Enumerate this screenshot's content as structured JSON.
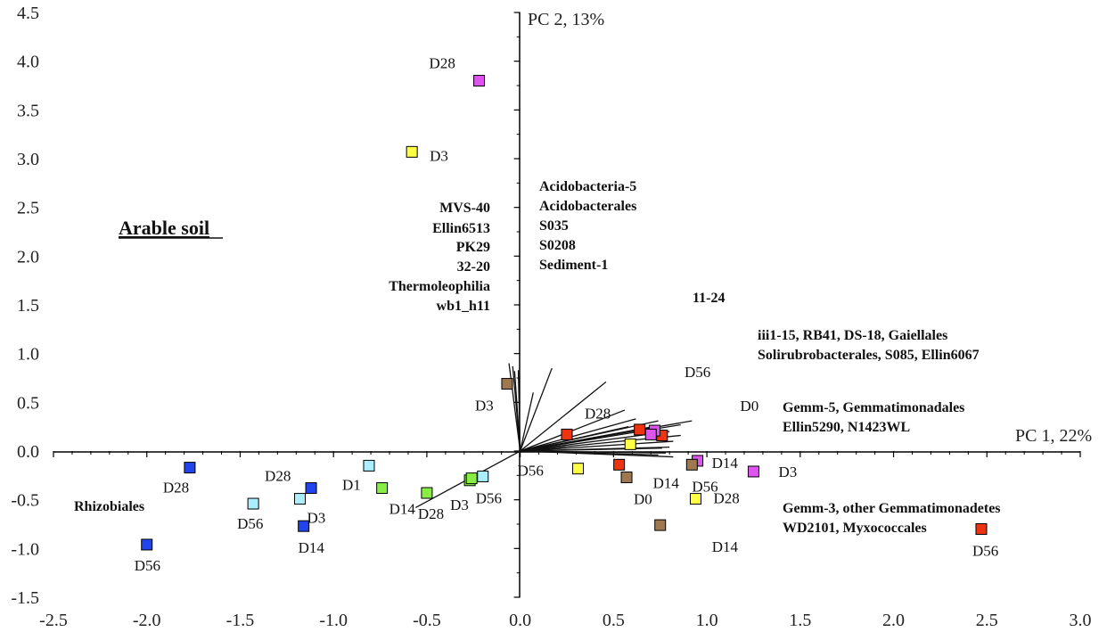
{
  "chart_data": {
    "type": "scatter",
    "title": "",
    "x_axis_title": "PC 1, 22%",
    "y_axis_title": "PC 2, 13%",
    "xlim": [
      -2.5,
      3.0
    ],
    "ylim": [
      -1.5,
      4.5
    ],
    "x_ticks": [
      "-2.5",
      "-2.0",
      "-1.5",
      "-1.0",
      "-0.5",
      "0.0",
      "0.5",
      "1.0",
      "1.5",
      "2.0",
      "2.5",
      "3.0"
    ],
    "y_ticks": [
      "4.5",
      "4.0",
      "3.5",
      "3.0",
      "2.5",
      "2.0",
      "1.5",
      "1.0",
      "0.5",
      "0.0",
      "-0.5",
      "-1.0",
      "-1.5"
    ],
    "grid": false,
    "colors": {
      "magenta": "#dd55ee",
      "yellow": "#ffff44",
      "brown": "#a07850",
      "red": "#ee3311",
      "blue": "#2244ee",
      "cyan": "#aaeeff",
      "green": "#88ee44"
    },
    "points": [
      {
        "x": -0.22,
        "y": 3.8,
        "color": "magenta",
        "label": "D28"
      },
      {
        "x": -0.58,
        "y": 3.07,
        "color": "yellow",
        "label": "D3"
      },
      {
        "x": -0.07,
        "y": 0.69,
        "color": "brown",
        "label": "D3"
      },
      {
        "x": 0.25,
        "y": 0.17,
        "color": "red",
        "label": "D28"
      },
      {
        "x": 0.64,
        "y": 0.22,
        "color": "red",
        "label": ""
      },
      {
        "x": 0.76,
        "y": 0.16,
        "color": "red",
        "label": ""
      },
      {
        "x": 0.72,
        "y": 0.21,
        "color": "magenta",
        "label": "D0"
      },
      {
        "x": 0.7,
        "y": 0.17,
        "color": "magenta",
        "label": ""
      },
      {
        "x": 0.59,
        "y": 0.07,
        "color": "yellow",
        "label": ""
      },
      {
        "x": 0.95,
        "y": -0.1,
        "color": "magenta",
        "label": "D14"
      },
      {
        "x": 0.92,
        "y": -0.14,
        "color": "brown",
        "label": "D56"
      },
      {
        "x": 1.25,
        "y": -0.21,
        "color": "magenta",
        "label": "D3"
      },
      {
        "x": 0.31,
        "y": -0.18,
        "color": "yellow",
        "label": "D56"
      },
      {
        "x": 0.53,
        "y": -0.14,
        "color": "red",
        "label": "D14"
      },
      {
        "x": 0.57,
        "y": -0.27,
        "color": "brown",
        "label": "D0"
      },
      {
        "x": 0.94,
        "y": -0.49,
        "color": "yellow",
        "label": "D28"
      },
      {
        "x": 0.75,
        "y": -0.76,
        "color": "brown",
        "label": "D14"
      },
      {
        "x": 2.47,
        "y": -0.8,
        "color": "red",
        "label": "D56"
      },
      {
        "x": -0.2,
        "y": -0.26,
        "color": "cyan",
        "label": "D56"
      },
      {
        "x": -0.27,
        "y": -0.3,
        "color": "green",
        "label": "D3"
      },
      {
        "x": -0.26,
        "y": -0.28,
        "color": "green",
        "label": ""
      },
      {
        "x": -0.5,
        "y": -0.43,
        "color": "green",
        "label": "D28"
      },
      {
        "x": -0.74,
        "y": -0.38,
        "color": "green",
        "label": "D14"
      },
      {
        "x": -0.81,
        "y": -0.15,
        "color": "cyan",
        "label": "D1"
      },
      {
        "x": -1.12,
        "y": -0.38,
        "color": "blue",
        "label": "D28"
      },
      {
        "x": -1.18,
        "y": -0.49,
        "color": "cyan",
        "label": "D3"
      },
      {
        "x": -1.16,
        "y": -0.77,
        "color": "blue",
        "label": "D14"
      },
      {
        "x": -1.43,
        "y": -0.54,
        "color": "cyan",
        "label": "D56"
      },
      {
        "x": -1.77,
        "y": -0.17,
        "color": "blue",
        "label": "D28"
      },
      {
        "x": -2.0,
        "y": -0.96,
        "color": "blue",
        "label": "D56"
      }
    ],
    "loadings": [
      [
        -0.06,
        0.9
      ],
      [
        -0.04,
        0.87
      ],
      [
        -0.03,
        0.82
      ],
      [
        -0.01,
        0.83
      ],
      [
        0.07,
        0.6
      ],
      [
        0.17,
        0.85
      ],
      [
        0.46,
        0.71
      ],
      [
        0.56,
        0.42
      ],
      [
        0.62,
        0.33
      ],
      [
        0.58,
        0.25
      ],
      [
        0.74,
        0.31
      ],
      [
        0.74,
        0.26
      ],
      [
        0.86,
        0.27
      ],
      [
        0.92,
        0.31
      ],
      [
        0.8,
        0.2
      ],
      [
        0.86,
        0.16
      ],
      [
        0.82,
        0.1
      ],
      [
        0.8,
        0.04
      ],
      [
        0.76,
        0.03
      ],
      [
        0.78,
        -0.02
      ],
      [
        0.82,
        -0.06
      ],
      [
        0.74,
        -0.04
      ],
      [
        -0.56,
        -0.58
      ]
    ],
    "annotations": {
      "group_left": [
        "MVS-40",
        "Ellin6513",
        "PK29",
        "32-20",
        "Thermoleophilia",
        "wb1_h11"
      ],
      "group_right": [
        "Acidobacteria-5",
        "Acidobacterales",
        "S035",
        "S0208",
        "Sediment-1"
      ],
      "label_1124": "11-24",
      "group_iii": [
        "iii1-15, RB41, DS-18, Gaiellales",
        "Solirubrobacterales, S085, Ellin6067"
      ],
      "d56_label": "D56",
      "group_gemm5": [
        "Gemm-5, Gemmatimonadales",
        "Ellin5290, N1423WL"
      ],
      "group_gemm3": [
        "Gemm-3,  other Gemmatimonadetes",
        "WD2101, Myxococcales"
      ],
      "rhizobiales": "Rhizobiales",
      "arable": "Arable soil"
    }
  }
}
